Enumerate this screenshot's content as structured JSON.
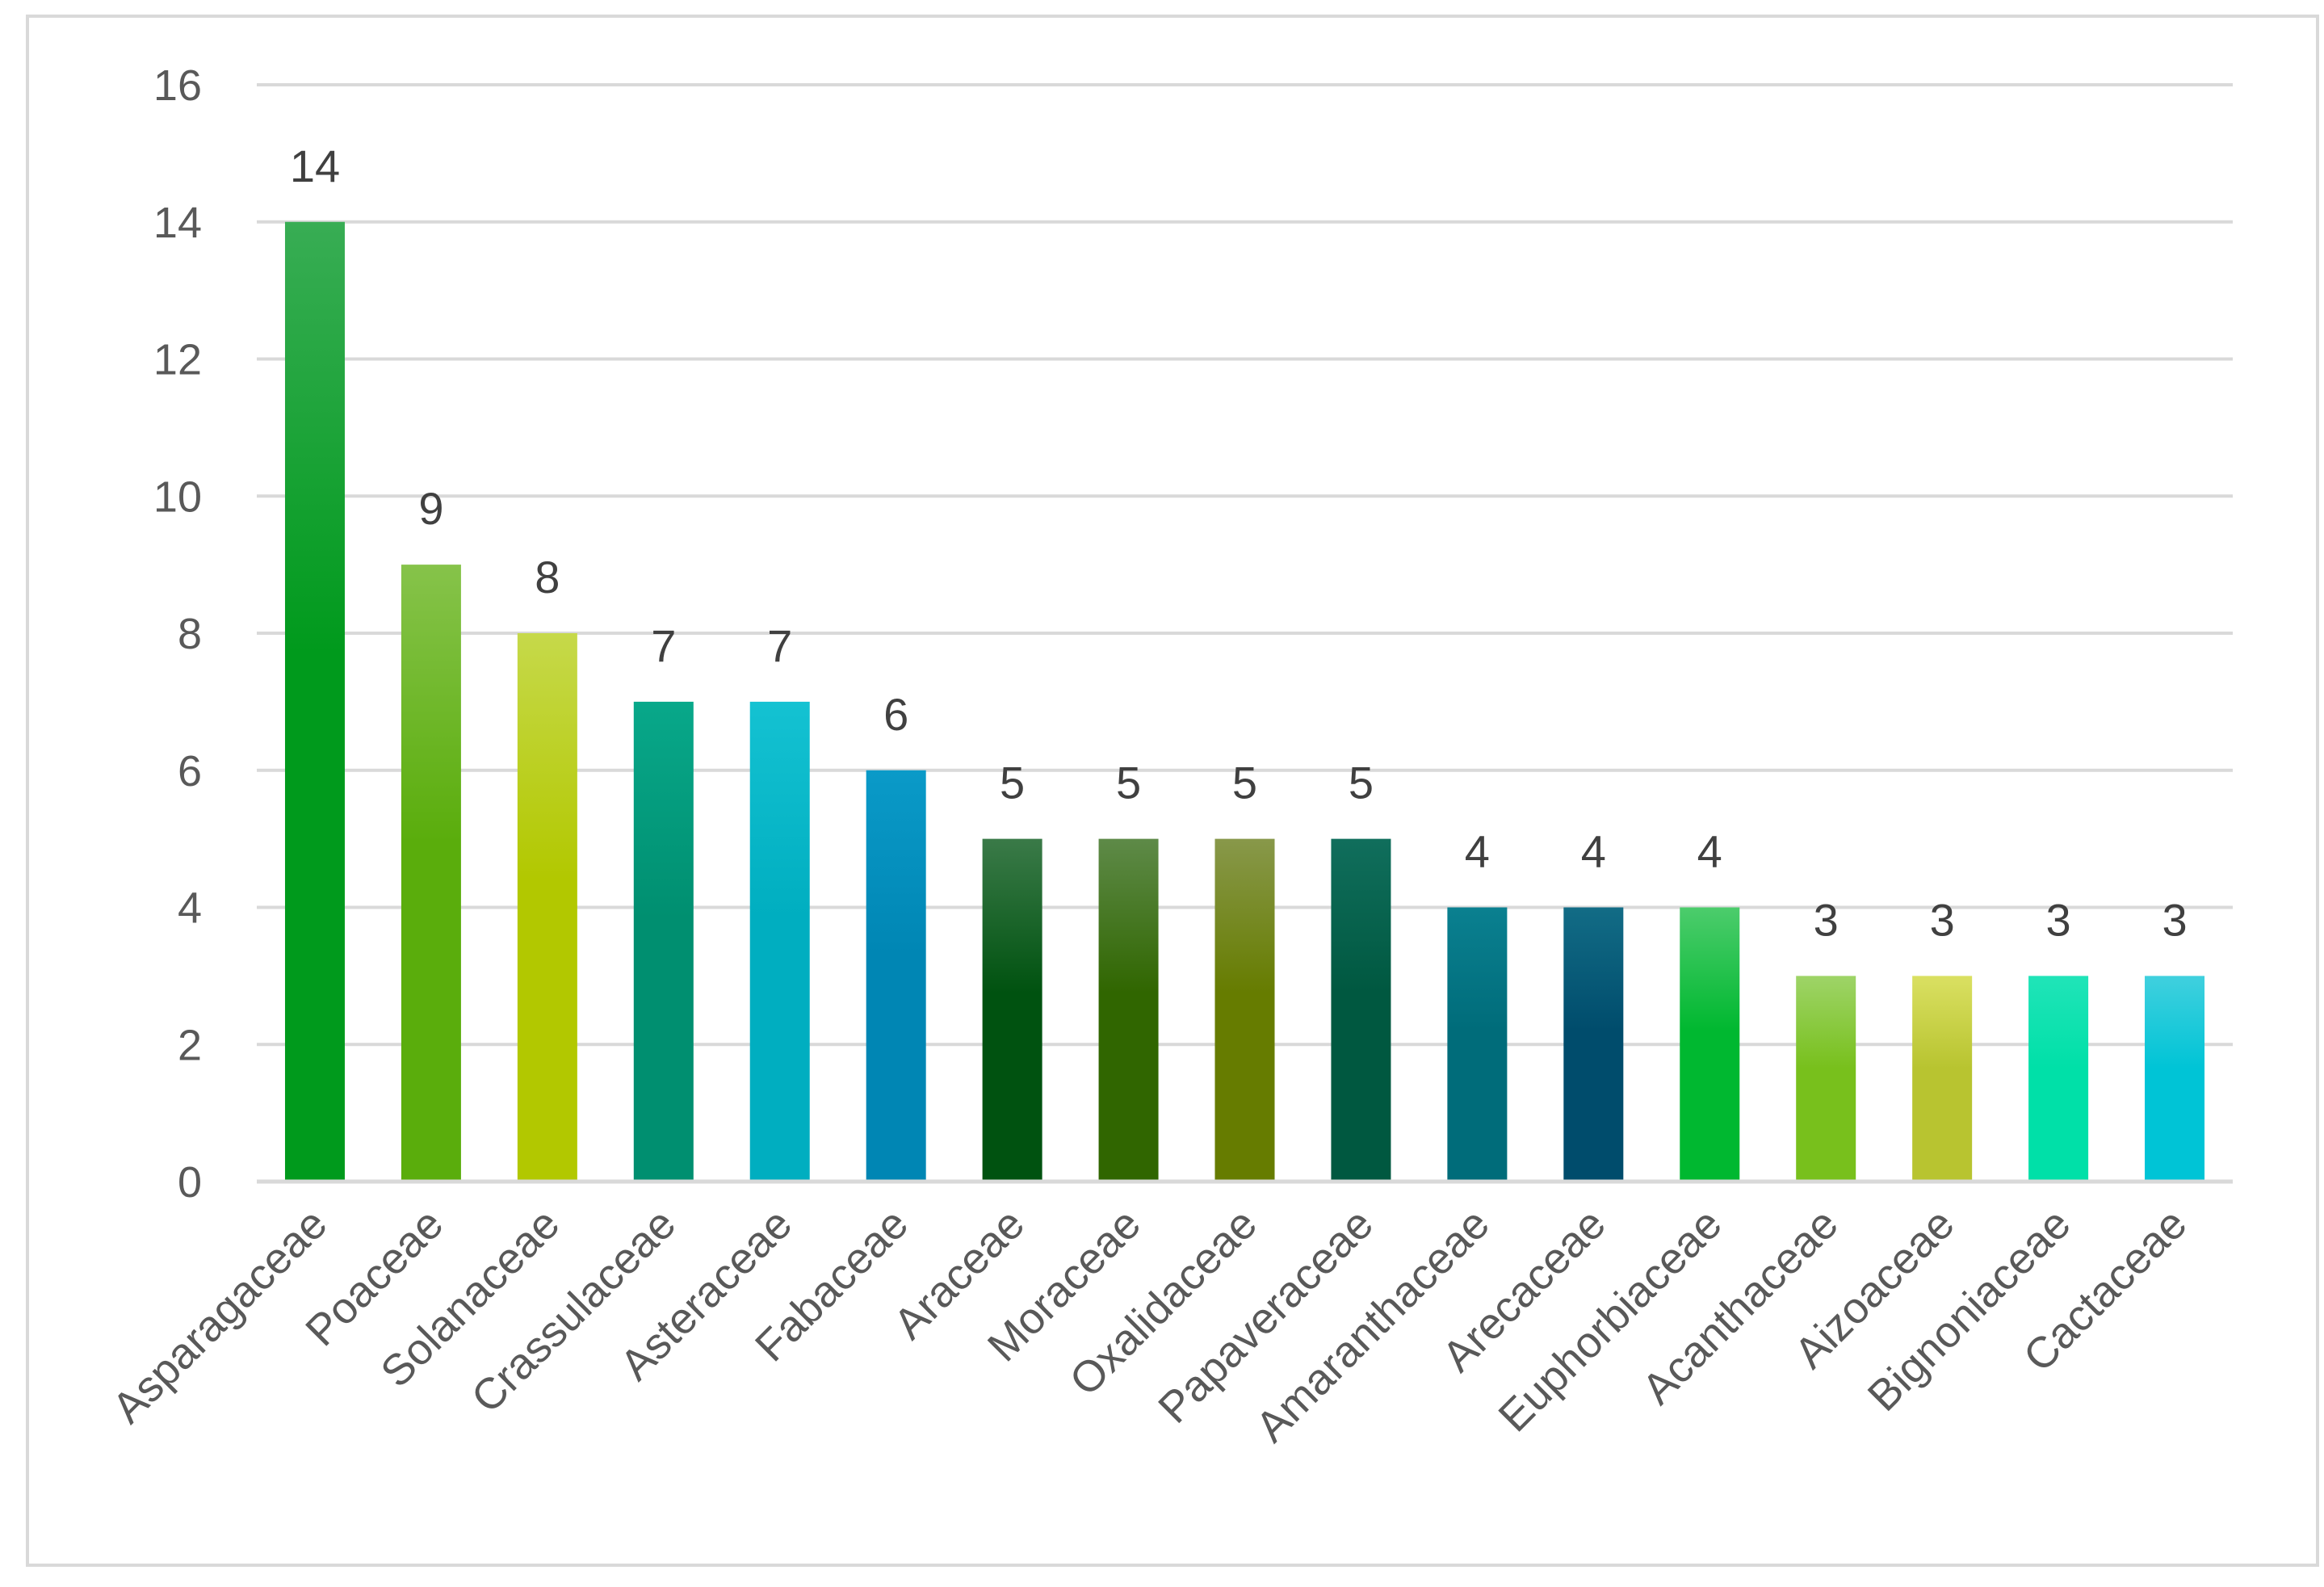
{
  "chart_data": {
    "type": "bar",
    "title": "",
    "xlabel": "",
    "ylabel": "",
    "ylim": [
      0,
      16
    ],
    "yticks": [
      0,
      2,
      4,
      6,
      8,
      10,
      12,
      14,
      16
    ],
    "grid": true,
    "categories": [
      "Asparagaceae",
      "Poaceae",
      "Solanaceae",
      "Crassulaceae",
      "Asteraceae",
      "Fabaceae",
      "Araceae",
      "Moraceae",
      "Oxalidaceae",
      "Papaveraceae",
      "Amaranthaceae",
      "Arecaceae",
      "Euphorbiaceae",
      "Acanthaceae",
      "Aizoaceae",
      "Bignoniaceae",
      "Cactaceae"
    ],
    "values": [
      14,
      9,
      8,
      7,
      7,
      6,
      5,
      5,
      5,
      5,
      4,
      4,
      4,
      3,
      3,
      3,
      3
    ],
    "colors": [
      [
        "#38ad54",
        "#009a1c"
      ],
      [
        "#86c34a",
        "#5aad0c"
      ],
      [
        "#c6d94a",
        "#b2c800"
      ],
      [
        "#08a88a",
        "#008f70"
      ],
      [
        "#14c2d2",
        "#00aec0"
      ],
      [
        "#0a9ac8",
        "#0086b4"
      ],
      [
        "#3a7a48",
        "#005210"
      ],
      [
        "#5e8a48",
        "#306600"
      ],
      [
        "#88984a",
        "#667c00"
      ],
      [
        "#106e5c",
        "#005840"
      ],
      [
        "#0a8090",
        "#006c7a"
      ],
      [
        "#126c86",
        "#004c6c"
      ],
      [
        "#4ccc6c",
        "#00b830"
      ],
      [
        "#9ed468",
        "#78c01c"
      ],
      [
        "#dae062",
        "#b8c430"
      ],
      [
        "#20e4b8",
        "#00e0a8"
      ],
      [
        "#40d0de",
        "#00c4d6"
      ]
    ]
  }
}
